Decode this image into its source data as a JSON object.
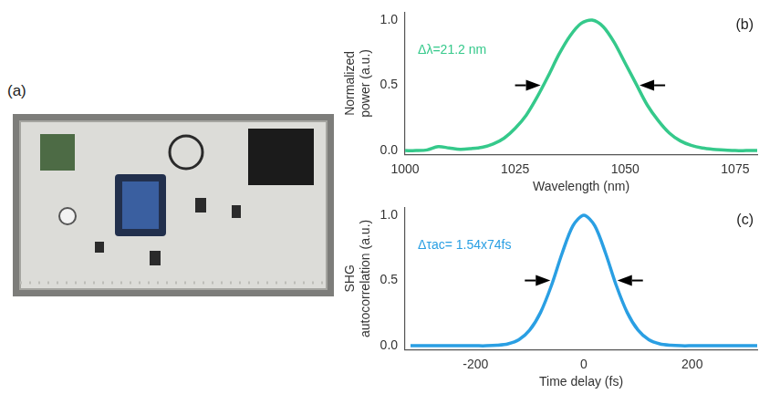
{
  "photo_panel": {
    "panel": "(a)"
  },
  "chart_data": [
    {
      "type": "line",
      "panel": "(b)",
      "x_label": "Wavelength (nm)",
      "y_label": "Normalized power (a.u.)",
      "annotation": "Δλ=21.2 nm",
      "x": [
        1000,
        1002.5,
        1005,
        1007.5,
        1010,
        1012.5,
        1015,
        1017.5,
        1020,
        1022.5,
        1025,
        1027.5,
        1030,
        1032.5,
        1035,
        1037.5,
        1040,
        1042.5,
        1045,
        1047.5,
        1050,
        1052.5,
        1055,
        1057.5,
        1060,
        1062.5,
        1065,
        1067.5,
        1070,
        1072.5,
        1075,
        1077.5,
        1080
      ],
      "values": [
        0.0,
        0.0,
        0.005,
        0.03,
        0.02,
        0.01,
        0.015,
        0.025,
        0.05,
        0.095,
        0.17,
        0.27,
        0.41,
        0.57,
        0.74,
        0.88,
        0.975,
        1.0,
        0.95,
        0.83,
        0.67,
        0.51,
        0.35,
        0.23,
        0.135,
        0.075,
        0.04,
        0.02,
        0.01,
        0.005,
        0.0,
        0.0,
        0.0
      ],
      "color": "#35c98b",
      "xlim": [
        1000,
        1080
      ],
      "xticks": [
        1000,
        1025,
        1050,
        1075
      ],
      "ylim": [
        -0.03,
        1.06
      ],
      "yticks": [
        {
          "value": 0,
          "label": "0.0"
        },
        {
          "value": 0.5,
          "label": "0.5"
        },
        {
          "value": 1,
          "label": "1.0"
        }
      ],
      "grid": false
    },
    {
      "type": "line",
      "panel": "(c)",
      "x_label": "Time delay (fs)",
      "y_label": "SHG autocorrelation (a.u.)",
      "annotation": "Δτac= 1.54x74fs",
      "x": [
        -320,
        -300,
        -280,
        -260,
        -240,
        -220,
        -200,
        -180,
        -160,
        -140,
        -120,
        -100,
        -80,
        -60,
        -40,
        -20,
        0,
        20,
        40,
        60,
        80,
        100,
        120,
        140,
        160,
        180,
        200,
        220,
        240,
        260,
        280,
        300,
        320
      ],
      "values": [
        0.0,
        0.0,
        0.0,
        0.0,
        0.0,
        0.0,
        0.0,
        0.0,
        0.004,
        0.015,
        0.046,
        0.12,
        0.255,
        0.46,
        0.71,
        0.92,
        1.0,
        0.92,
        0.71,
        0.46,
        0.255,
        0.12,
        0.046,
        0.015,
        0.004,
        0.0,
        0.0,
        0.0,
        0.0,
        0.0,
        0.0,
        0.0,
        0.0
      ],
      "color": "#2a9fe3",
      "xlim": [
        -330,
        320
      ],
      "xticks": [
        -200,
        0,
        200
      ],
      "ylim": [
        -0.03,
        1.06
      ],
      "yticks": [
        {
          "value": 0,
          "label": "0.0"
        },
        {
          "value": 0.5,
          "label": "0.5"
        },
        {
          "value": 1,
          "label": "1.0"
        }
      ],
      "grid": false
    }
  ]
}
